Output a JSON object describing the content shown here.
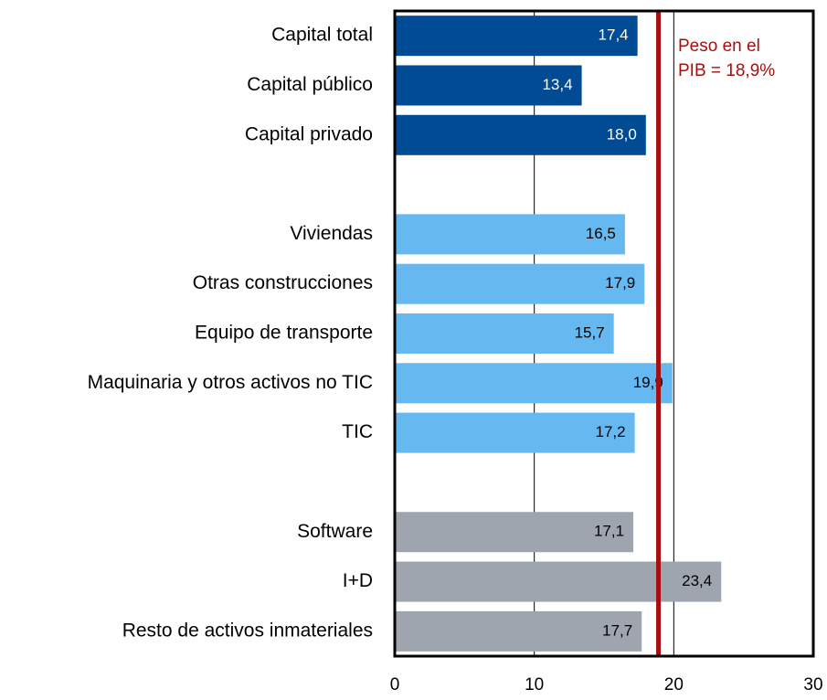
{
  "chart_data": {
    "type": "hbar",
    "categories": [
      "Capital total",
      "Capital público",
      "Capital privado",
      null,
      "Viviendas",
      "Otras construcciones",
      "Equipo de transporte",
      "Maquinaria y otros activos no TIC",
      "TIC",
      null,
      "Software",
      "I+D",
      "Resto de activos inmateriales"
    ],
    "values": [
      17.4,
      13.4,
      18.0,
      null,
      16.5,
      17.9,
      15.7,
      19.9,
      17.2,
      null,
      17.1,
      23.4,
      17.7
    ],
    "value_labels": [
      "17,4",
      "13,4",
      "18,0",
      null,
      "16,5",
      "17,9",
      "15,7",
      "19,9",
      "17,2",
      null,
      "17,1",
      "23,4",
      "17,7"
    ],
    "colors": [
      "#004b93",
      "#004b93",
      "#004b93",
      null,
      "#66b8f0",
      "#66b8f0",
      "#66b8f0",
      "#66b8f0",
      "#66b8f0",
      null,
      "#9ea5ae",
      "#9ea5ae",
      "#9ea5ae"
    ],
    "xlim": [
      0,
      30
    ],
    "xticks": [
      0,
      10,
      20,
      30
    ],
    "grid": true,
    "reference_line": {
      "value": 18.9,
      "color": "#a50f0f",
      "label": [
        "Peso en el",
        "PIB = 18,9%"
      ]
    }
  }
}
